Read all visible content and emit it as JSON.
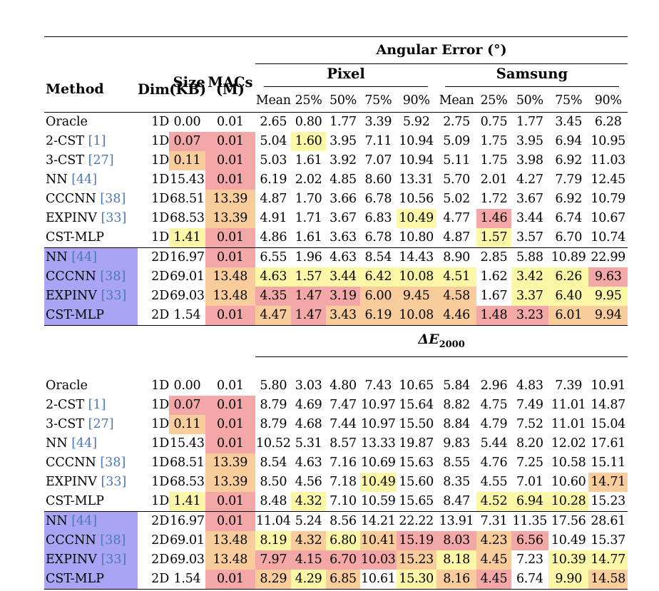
{
  "colors": {
    "red": "#f4a7a7",
    "orange": "#f8cc9b",
    "yellow": "#fbf7a6",
    "purple": "#a9a5f4",
    "ref_blue": "#4a78b8"
  },
  "header": {
    "method": "Method",
    "dim": "Dim",
    "size": "Size",
    "size_unit": "(KB)",
    "macs": "MACs",
    "macs_unit": "(M)",
    "angular_error": "Angular Error (°)",
    "pixel": "Pixel",
    "samsung": "Samsung",
    "stats": [
      "Mean",
      "25%",
      "50%",
      "75%",
      "90%",
      "Mean",
      "25%",
      "50%",
      "75%",
      "90%"
    ]
  },
  "delta_e_title": "ΔE",
  "delta_e_sub": "2000",
  "angular_rows": [
    {
      "method": "Oracle",
      "ref": "",
      "dim": "1D",
      "size": "0.00",
      "macs": "0.01",
      "vals": [
        "2.65",
        "0.80",
        "1.77",
        "3.39",
        "5.92",
        "2.75",
        "0.75",
        "1.77",
        "3.45",
        "6.28"
      ]
    },
    {
      "method": "2-CST",
      "ref": "[1]",
      "dim": "1D",
      "size": "0.07",
      "macs": "0.01",
      "vals": [
        "5.04",
        "1.60",
        "3.95",
        "7.11",
        "10.94",
        "5.09",
        "1.75",
        "3.95",
        "6.94",
        "10.95"
      ]
    },
    {
      "method": "3-CST",
      "ref": "[27]",
      "dim": "1D",
      "size": "0.11",
      "macs": "0.01",
      "vals": [
        "5.03",
        "1.61",
        "3.92",
        "7.07",
        "10.94",
        "5.11",
        "1.75",
        "3.98",
        "6.92",
        "11.03"
      ]
    },
    {
      "method": "NN",
      "ref": "[44]",
      "dim": "1D",
      "size": "15.43",
      "macs": "0.01",
      "vals": [
        "6.19",
        "2.02",
        "4.85",
        "8.60",
        "13.31",
        "5.70",
        "2.01",
        "4.27",
        "7.79",
        "12.45"
      ]
    },
    {
      "method": "CCCNN",
      "ref": "[38]",
      "dim": "1D",
      "size": "68.51",
      "macs": "13.39",
      "vals": [
        "4.87",
        "1.70",
        "3.66",
        "6.78",
        "10.56",
        "5.02",
        "1.72",
        "3.67",
        "6.92",
        "10.79"
      ]
    },
    {
      "method": "EXPINV",
      "ref": "[33]",
      "dim": "1D",
      "size": "68.53",
      "macs": "13.39",
      "vals": [
        "4.91",
        "1.71",
        "3.67",
        "6.83",
        "10.49",
        "4.77",
        "1.46",
        "3.44",
        "6.74",
        "10.67"
      ]
    },
    {
      "method": "CST-MLP",
      "ref": "",
      "dim": "1D",
      "size": "1.41",
      "macs": "0.01",
      "vals": [
        "4.86",
        "1.61",
        "3.63",
        "6.78",
        "10.80",
        "4.87",
        "1.57",
        "3.57",
        "6.70",
        "10.74"
      ]
    },
    {
      "method": "NN",
      "ref": "[44]",
      "dim": "2D",
      "size": "16.97",
      "macs": "0.01",
      "vals": [
        "6.55",
        "1.96",
        "4.63",
        "8.54",
        "14.43",
        "8.90",
        "2.85",
        "5.88",
        "10.89",
        "22.99"
      ]
    },
    {
      "method": "CCCNN",
      "ref": "[38]",
      "dim": "2D",
      "size": "69.01",
      "macs": "13.48",
      "vals": [
        "4.63",
        "1.57",
        "3.44",
        "6.42",
        "10.08",
        "4.51",
        "1.62",
        "3.42",
        "6.26",
        "9.63"
      ]
    },
    {
      "method": "EXPINV",
      "ref": "[33]",
      "dim": "2D",
      "size": "69.03",
      "macs": "13.48",
      "vals": [
        "4.35",
        "1.47",
        "3.19",
        "6.00",
        "9.45",
        "4.58",
        "1.67",
        "3.37",
        "6.40",
        "9.95"
      ]
    },
    {
      "method": "CST-MLP",
      "ref": "",
      "dim": "2D",
      "size": "1.54",
      "macs": "0.01",
      "vals": [
        "4.47",
        "1.47",
        "3.43",
        "6.19",
        "10.08",
        "4.46",
        "1.48",
        "3.23",
        "6.01",
        "9.94"
      ]
    }
  ],
  "delta_rows": [
    {
      "method": "Oracle",
      "ref": "",
      "dim": "1D",
      "size": "0.00",
      "macs": "0.01",
      "vals": [
        "5.80",
        "3.03",
        "4.80",
        "7.43",
        "10.65",
        "5.84",
        "2.96",
        "4.83",
        "7.39",
        "10.91"
      ]
    },
    {
      "method": "2-CST",
      "ref": "[1]",
      "dim": "1D",
      "size": "0.07",
      "macs": "0.01",
      "vals": [
        "8.79",
        "4.69",
        "7.47",
        "10.97",
        "15.64",
        "8.82",
        "4.75",
        "7.49",
        "11.01",
        "14.87"
      ]
    },
    {
      "method": "3-CST",
      "ref": "[27]",
      "dim": "1D",
      "size": "0.11",
      "macs": "0.01",
      "vals": [
        "8.79",
        "4.68",
        "7.44",
        "10.97",
        "15.50",
        "8.84",
        "4.79",
        "7.52",
        "11.01",
        "15.04"
      ]
    },
    {
      "method": "NN",
      "ref": "[44]",
      "dim": "1D",
      "size": "15.43",
      "macs": "0.01",
      "vals": [
        "10.52",
        "5.31",
        "8.57",
        "13.33",
        "19.87",
        "9.83",
        "5.44",
        "8.20",
        "12.02",
        "17.61"
      ]
    },
    {
      "method": "CCCNN",
      "ref": "[38]",
      "dim": "1D",
      "size": "68.51",
      "macs": "13.39",
      "vals": [
        "8.54",
        "4.63",
        "7.16",
        "10.69",
        "15.63",
        "8.55",
        "4.76",
        "7.25",
        "10.58",
        "15.11"
      ]
    },
    {
      "method": "EXPINV",
      "ref": "[33]",
      "dim": "1D",
      "size": "68.53",
      "macs": "13.39",
      "vals": [
        "8.50",
        "4.56",
        "7.18",
        "10.49",
        "15.60",
        "8.35",
        "4.55",
        "7.01",
        "10.60",
        "14.71"
      ]
    },
    {
      "method": "CST-MLP",
      "ref": "",
      "dim": "1D",
      "size": "1.41",
      "macs": "0.01",
      "vals": [
        "8.48",
        "4.32",
        "7.10",
        "10.59",
        "15.65",
        "8.47",
        "4.52",
        "6.94",
        "10.28",
        "15.23"
      ]
    },
    {
      "method": "NN",
      "ref": "[44]",
      "dim": "2D",
      "size": "16.97",
      "macs": "0.01",
      "vals": [
        "11.04",
        "5.24",
        "8.56",
        "14.21",
        "22.22",
        "13.91",
        "7.31",
        "11.35",
        "17.56",
        "28.61"
      ]
    },
    {
      "method": "CCCNN",
      "ref": "[38]",
      "dim": "2D",
      "size": "69.01",
      "macs": "13.48",
      "vals": [
        "8.19",
        "4.32",
        "6.80",
        "10.41",
        "15.19",
        "8.03",
        "4.23",
        "6.56",
        "10.49",
        "15.37"
      ]
    },
    {
      "method": "EXPINV",
      "ref": "[33]",
      "dim": "2D",
      "size": "69.03",
      "macs": "13.48",
      "vals": [
        "7.97",
        "4.15",
        "6.70",
        "10.03",
        "15.23",
        "8.18",
        "4.45",
        "7.23",
        "10.39",
        "14.77"
      ]
    },
    {
      "method": "CST-MLP",
      "ref": "",
      "dim": "2D",
      "size": "1.54",
      "macs": "0.01",
      "vals": [
        "8.29",
        "4.29",
        "6.85",
        "10.61",
        "15.30",
        "8.16",
        "4.45",
        "6.74",
        "9.90",
        "14.58"
      ]
    }
  ]
}
